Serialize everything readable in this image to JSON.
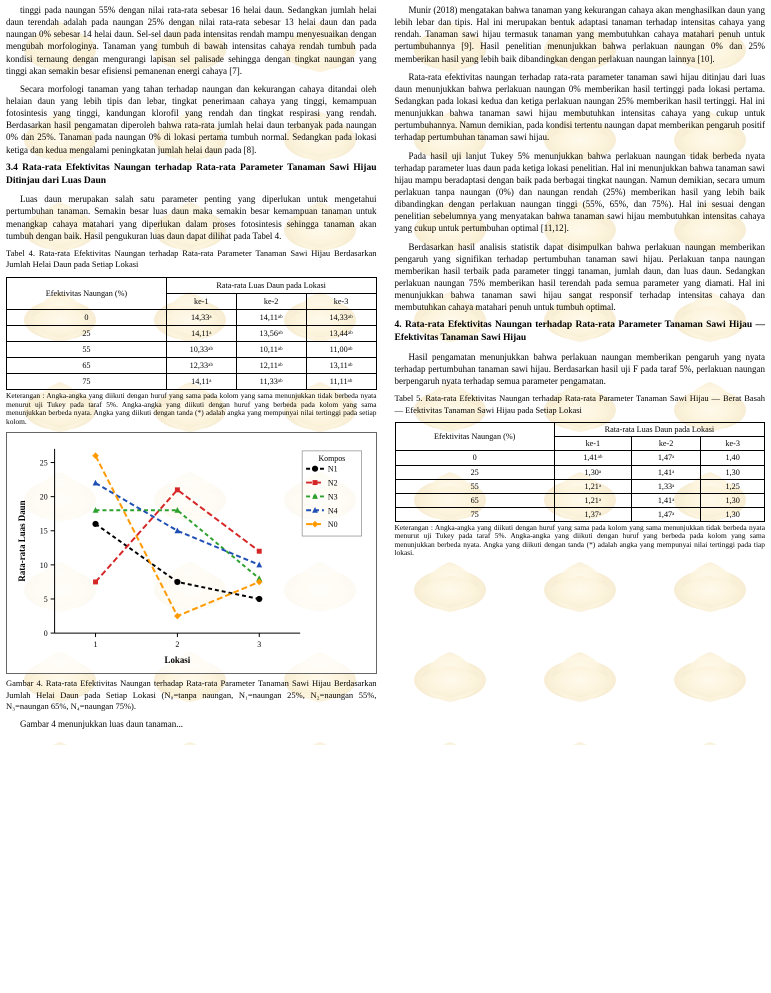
{
  "left": {
    "para1": "tinggi pada naungan 55% dengan nilai rata-rata sebesar 16 helai daun. Sedangkan jumlah helai daun terendah adalah pada naungan 25% dengan nilai rata-rata sebesar 13 helai daun dan pada naungan 0% sebesar 14 helai daun. Sel-sel daun pada intensitas rendah mampu menyesuaikan dengan mengubah morfologinya. Tanaman yang tumbuh di bawah intensitas cahaya rendah tumbuh pada kondisi ternaung dengan mengurangi lapisan sel palisade sehingga dengan tingkat naungan yang tinggi akan semakin besar efisiensi pemanenan energi cahaya [7].",
    "para2": "Secara morfologi tanaman yang tahan terhadap naungan dan kekurangan cahaya ditandai oleh helaian daun yang lebih tipis dan lebar, tingkat penerimaan cahaya yang tinggi, kemampuan fotosintesis yang tinggi, kandungan klorofil yang rendah dan tingkat respirasi yang rendah. Berdasarkan hasil pengamatan diperoleh bahwa rata-rata jumlah helai daun terbanyak pada naungan 0% dan 25%. Tanaman pada naungan 0% di lokasi pertama tumbuh normal. Sedangkan pada lokasi ketiga dan kedua mengalami peningkatan jumlah helai daun pada [8].",
    "sec_head": "3.4 Rata-rata Efektivitas Naungan terhadap Rata-rata Parameter Tanaman Sawi Hijau Ditinjau dari Luas Daun",
    "para3": "Luas daun merupakan salah satu parameter penting yang diperlukan untuk mengetahui pertumbuhan tanaman. Semakin besar luas daun maka semakin besar kemampuan tanaman untuk menangkap cahaya matahari yang diperlukan dalam proses fotosintesis sehingga tanaman akan tumbuh dengan baik. Hasil pengukuran luas daun dapat dilihat pada Tabel 4.",
    "tbl1_caption": "Tabel 4. Rata-rata Efektivitas Naungan terhadap Rata-rata Parameter Tanaman Sawi Hijau Berdasarkan Jumlah Helai Daun pada Setiap Lokasi",
    "tbl1": {
      "head_left": "Efektivitas \nNaungan (%)",
      "head_right": "Rata-rata Luas Daun pada Lokasi",
      "cols": [
        "ke-1",
        "ke-2",
        "ke-3"
      ],
      "rows": [
        [
          "0",
          "14,33ᵃ",
          "14,11ᵃᵇ",
          "14,33ᵃᵇ"
        ],
        [
          "25",
          "14,11ᵃ",
          "13,56ᵃᵇ",
          "13,44ᵃᵇ"
        ],
        [
          "55",
          "10,33ᵃᵇ",
          "10,11ᵃᵇ",
          "11,00ᵃᵇ"
        ],
        [
          "65",
          "12,33ᵃᵇ",
          "12,11ᵃᵇ",
          "13,11ᵃᵇ"
        ],
        [
          "75",
          "14,11ᵃ",
          "11,33ᵃᵇ",
          "11,11ᵃᵇ"
        ]
      ]
    },
    "tbl1_note": "Keterangan : Angka-angka yang diikuti dengan huruf yang sama pada kolom yang sama menunjukkan tidak berbeda nyata menurut uji Tukey pada taraf 5%. Angka-angka yang diikuti dengan huruf yang berbeda pada kolom yang sama menunjukkan berbeda nyata. Angka yang diikuti dengan tanda (*) adalah angka yang mempunyai nilai tertinggi pada setiap kolom.",
    "chart": {
      "type": "line",
      "title": "",
      "x_label": "Lokasi",
      "y_label": "Rata-rata Luas Daun",
      "xlim": [
        0.5,
        3.5
      ],
      "ylim": [
        0,
        27
      ],
      "ytick_step": 5,
      "x_categories": [
        "1",
        "2",
        "3"
      ],
      "legend_title": "Kompos",
      "background_color": "#ffffff",
      "grid_on": false,
      "axis_color": "#000000",
      "line_width": 2,
      "marker_size": 5,
      "font_size_label": 9,
      "font_size_tick": 8,
      "series": [
        {
          "name": "N1",
          "color": "#000000",
          "dash": "4,3",
          "marker": "circle",
          "values": [
            16,
            7.5,
            5
          ]
        },
        {
          "name": "N2",
          "color": "#d62728",
          "dash": "6,3",
          "marker": "square",
          "values": [
            7.5,
            21,
            12
          ]
        },
        {
          "name": "N3",
          "color": "#2ca02c",
          "dash": "4,3",
          "marker": "triangle",
          "values": [
            18,
            18,
            8
          ]
        },
        {
          "name": "N4",
          "color": "#1f4fb4",
          "dash": "5,3",
          "marker": "triangle",
          "values": [
            22,
            15,
            10
          ]
        },
        {
          "name": "N0",
          "color": "#ff9900",
          "dash": "6,3",
          "marker": "diamond",
          "values": [
            26,
            2.5,
            7.5
          ]
        }
      ]
    },
    "fig_caption": "Gambar 4. Rata-rata Efektivitas Naungan terhadap Rata-rata Parameter Tanaman Sawi Hijau Berdasarkan Jumlah Helai Daun pada Setiap Lokasi (N₀=tanpa naungan, N₁=naungan 25%, N₂=naungan 55%, N₃=naungan 65%, N₄=naungan 75%).",
    "fig_note": "Gambar 4 menunjukkan luas daun tanaman..."
  },
  "right": {
    "paraA": "Munir (2018) mengatakan bahwa tanaman yang kekurangan cahaya akan menghasilkan daun yang lebih lebar dan tipis. Hal ini merupakan bentuk adaptasi tanaman terhadap intensitas cahaya yang rendah. Tanaman sawi hijau termasuk tanaman yang membutuhkan cahaya matahari penuh untuk pertumbuhannya [9]. Hasil penelitian menunjukkan bahwa perlakuan naungan 0% dan 25% memberikan hasil yang lebih baik dibandingkan dengan perlakuan naungan lainnya [10].",
    "paraB": "Rata-rata efektivitas naungan terhadap rata-rata parameter tanaman sawi hijau ditinjau dari luas daun menunjukkan bahwa perlakuan naungan 0% memberikan hasil tertinggi pada lokasi pertama. Sedangkan pada lokasi kedua dan ketiga perlakuan naungan 25% memberikan hasil tertinggi. Hal ini menunjukkan bahwa tanaman sawi hijau membutuhkan intensitas cahaya yang cukup untuk pertumbuhannya. Namun demikian, pada kondisi tertentu naungan dapat memberikan pengaruh positif terhadap pertumbuhan tanaman sawi hijau.",
    "paraC": "Pada hasil uji lanjut Tukey 5% menunjukkan bahwa perlakuan naungan tidak berbeda nyata terhadap parameter luas daun pada ketiga lokasi penelitian. Hal ini menunjukkan bahwa tanaman sawi hijau mampu beradaptasi dengan baik pada berbagai tingkat naungan. Namun demikian, secara umum perlakuan tanpa naungan (0%) dan naungan rendah (25%) memberikan hasil yang lebih baik dibandingkan dengan perlakuan naungan tinggi (55%, 65%, dan 75%). Hal ini sesuai dengan penelitian sebelumnya yang menyatakan bahwa tanaman sawi hijau membutuhkan intensitas cahaya yang cukup untuk pertumbuhan optimal [11,12].",
    "paraD": "Berdasarkan hasil analisis statistik dapat disimpulkan bahwa perlakuan naungan memberikan pengaruh yang signifikan terhadap pertumbuhan tanaman sawi hijau. Perlakuan tanpa naungan memberikan hasil terbaik pada parameter tinggi tanaman, jumlah daun, dan luas daun. Sedangkan perlakuan naungan 75% memberikan hasil terendah pada semua parameter yang diamati. Hal ini menunjukkan bahwa tanaman sawi hijau sangat responsif terhadap intensitas cahaya dan membutuhkan cahaya matahari penuh untuk tumbuh optimal.",
    "sec_head2": "4. Rata-rata Efektivitas Naungan terhadap Rata-rata Parameter Tanaman Sawi Hijau — Efektivitas Tanaman Sawi Hijau",
    "paraE": "Hasil pengamatan menunjukkan bahwa perlakuan naungan memberikan pengaruh yang nyata terhadap pertumbuhan tanaman sawi hijau. Berdasarkan hasil uji F pada taraf 5%, perlakuan naungan berpengaruh nyata terhadap semua parameter pengamatan.",
    "tbl2_caption": "Tabel 5. Rata-rata Efektivitas Naungan terhadap Rata-rata Parameter Tanaman Sawi Hijau — Berat Basah — Efektivitas Tanaman Sawi Hijau pada Setiap Lokasi",
    "tbl2": {
      "head_left": "Efektivitas Naungan (%)",
      "head_right": "Rata-rata Luas Daun pada Lokasi",
      "cols": [
        "ke-1",
        "ke-2",
        "ke-3"
      ],
      "rows": [
        [
          "0",
          "1,41ᵃᵇ",
          "1,47ᵃ",
          "1,40"
        ],
        [
          "25",
          "1,30ᵃ",
          "1,41ᵃ",
          "1,30"
        ],
        [
          "55",
          "1,21ᵃ",
          "1,33ᵃ",
          "1,25"
        ],
        [
          "65",
          "1,21ᵃ",
          "1,41ᵃ",
          "1,30"
        ],
        [
          "75",
          "1,37ᵃ",
          "1,47ᵃ",
          "1,30"
        ]
      ]
    },
    "tbl2_note": "Keterangan : Angka-angka yang diikuti dengan huruf yang sama pada kolom yang sama menunjukkan tidak berbeda nyata menurut uji Tukey pada taraf 5%. Angka-angka yang diikuti dengan huruf yang berbeda pada kolom yang sama menunjukkan berbeda nyata. Angka yang diikuti dengan tanda (*) adalah angka yang mempunyai nilai tertinggi pada tiap lokasi."
  }
}
